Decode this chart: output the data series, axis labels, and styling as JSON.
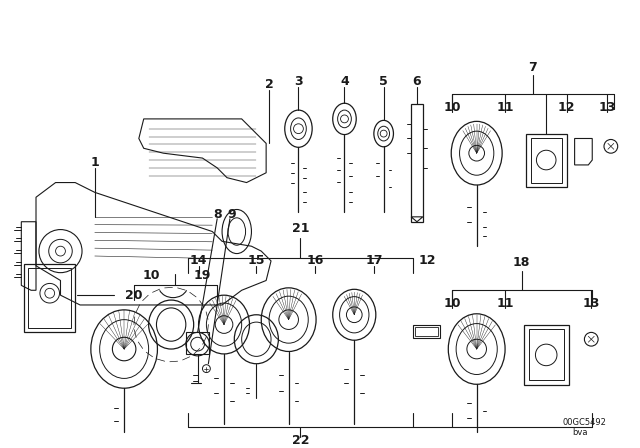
{
  "bg_color": "#ffffff",
  "line_color": "#1a1a1a",
  "fig_width": 6.4,
  "fig_height": 4.48,
  "dpi": 100,
  "watermark1": "00GC5492",
  "watermark2": "bva"
}
